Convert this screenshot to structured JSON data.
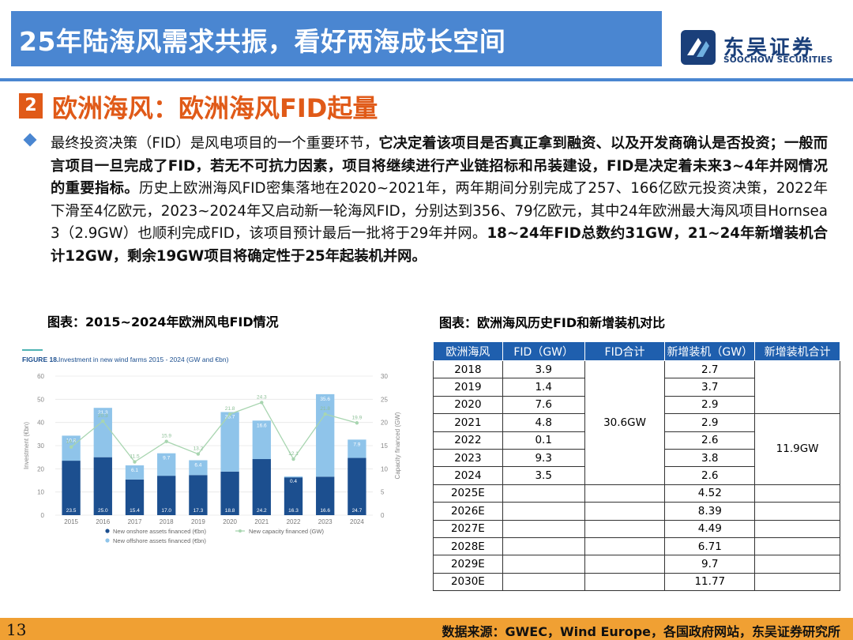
{
  "header": {
    "title": "25年陆海风需求共振，看好两海成长空间",
    "logo_name": "东吴证券",
    "logo_en": "SOOCHOW SECURITIES",
    "logo_icon": "soochow-logo-icon"
  },
  "section": {
    "number": "2",
    "title": "欧洲海风：欧洲海风FID起量"
  },
  "body": {
    "p1": "最终投资决策（FID）是风电项目的一个重要环节，",
    "p2": "它决定着该项目是否真正拿到融资、以及开发商确认是否投资；一般而言项目一旦完成了FID，若无不可抗力因素，项目将继续进行产业链招标和吊装建设，FID是决定着未来3~4年并网情况的重要指标。",
    "p3": "历史上欧洲海风FID密集落地在2020~2021年，两年期间分别完成了257、166亿欧元投资决策，2022年下滑至4亿欧元，2023~2024年又启动新一轮海风FID，分别达到356、79亿欧元，其中24年欧洲最大海风项目Hornsea 3（2.9GW）也顺利完成FID，该项目预计最后一批将于29年并网。",
    "p4": "18~24年FID总数约31GW，21~24年新增装机合计12GW，剩余19GW项目将确定性于25年起装机并网。"
  },
  "left_figure": {
    "caption": "图表：2015~2024年欧洲风电FID情况"
  },
  "right_figure": {
    "caption": "图表：欧洲海风历史FID和新增装机对比",
    "headers": [
      "欧洲海风",
      "FID（GW）",
      "FID合计",
      "新增装机（GW）",
      "新增装机合计"
    ],
    "rows": [
      [
        "2018",
        "3.9",
        "2.7"
      ],
      [
        "2019",
        "1.4",
        "3.7"
      ],
      [
        "2020",
        "7.6",
        "2.9"
      ],
      [
        "2021",
        "4.8",
        "2.9"
      ],
      [
        "2022",
        "0.1",
        "2.6"
      ],
      [
        "2023",
        "9.3",
        "3.8"
      ],
      [
        "2024",
        "3.5",
        "2.6"
      ],
      [
        "2025E",
        "",
        "4.52"
      ],
      [
        "2026E",
        "",
        "8.39"
      ],
      [
        "2027E",
        "",
        "4.49"
      ],
      [
        "2028E",
        "",
        "6.71"
      ],
      [
        "2029E",
        "",
        "9.7"
      ],
      [
        "2030E",
        "",
        "11.77"
      ]
    ],
    "fid_total": "30.6GW",
    "install_total": "11.9GW"
  },
  "footer": {
    "page": "13",
    "source": "数据来源：GWEC，Wind Europe，各国政府网站，东吴证券研究所"
  },
  "chart_data": {
    "type": "bar",
    "title": "FIGURE 18.",
    "subtitle": "Investment in new wind farms 2015 - 2024 (GW and €bn)",
    "categories": [
      "2015",
      "2016",
      "2017",
      "2018",
      "2019",
      "2020",
      "2021",
      "2022",
      "2023",
      "2024"
    ],
    "series": [
      {
        "name": "New onshore assets financed (€bn)",
        "kind": "stacked-bar",
        "color": "#1c4f8f",
        "values": [
          23.5,
          25.0,
          15.4,
          17.0,
          17.3,
          18.8,
          24.2,
          16.3,
          16.6,
          24.7
        ]
      },
      {
        "name": "New offshore assets financed (€bn)",
        "kind": "stacked-bar",
        "color": "#8fc4ea",
        "values": [
          10.8,
          21.3,
          6.1,
          9.7,
          6.4,
          25.7,
          16.6,
          0.4,
          35.6,
          7.9
        ]
      },
      {
        "name": "New capacity financed (GW)",
        "kind": "line",
        "axis": "right",
        "color": "#a8d5b0",
        "values": [
          14.7,
          20.3,
          11.5,
          15.9,
          13.2,
          21.8,
          24.3,
          12.1,
          21.8,
          19.9
        ]
      }
    ],
    "ylabel": "Investment (€bn)",
    "y2label": "Capacity financed (GW)",
    "ylim": [
      0,
      60
    ],
    "y2lim": [
      0,
      30
    ],
    "yticks": [
      0,
      10,
      20,
      30,
      40,
      50,
      60
    ],
    "y2ticks": [
      0,
      5,
      10,
      15,
      20,
      25,
      30
    ],
    "grid": true,
    "legend_position": "bottom"
  }
}
